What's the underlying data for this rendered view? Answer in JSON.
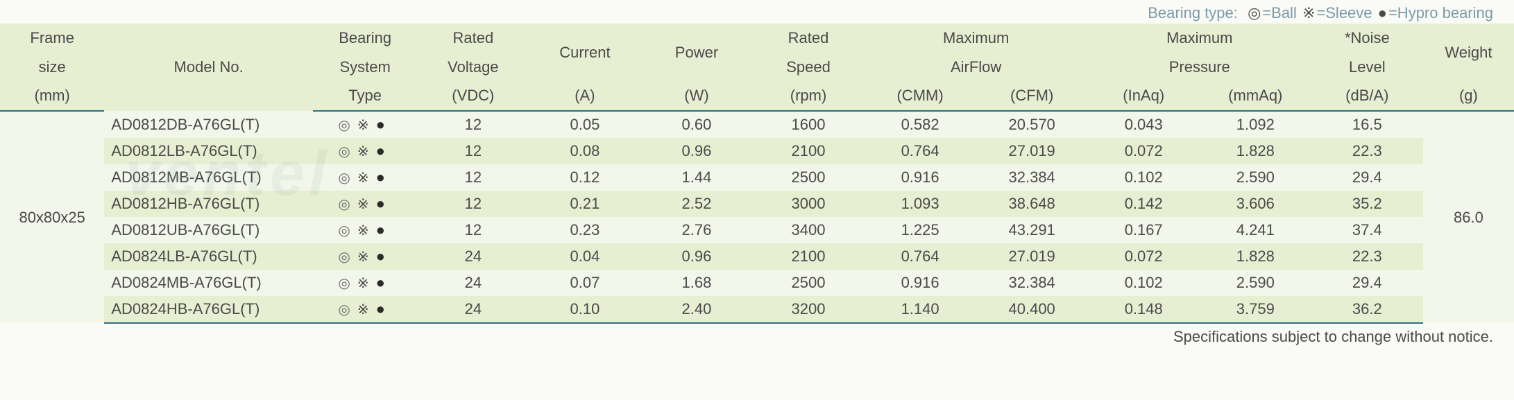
{
  "legend": {
    "label": "Bearing type:",
    "ball_sym": "◎",
    "ball_txt": "=Ball",
    "sleeve_sym": "※",
    "sleeve_txt": "=Sleeve",
    "hypro_sym": "●",
    "hypro_txt": "=Hypro bearing"
  },
  "columns": {
    "frame_l1": "Frame",
    "frame_l2": "size",
    "frame_l3": "(mm)",
    "model": "Model No.",
    "bearing_l1": "Bearing",
    "bearing_l2": "System",
    "bearing_l3": "Type",
    "volt_l1": "Rated",
    "volt_l2": "Voltage",
    "volt_l3": "(VDC)",
    "curr_l1": "Current",
    "curr_l2": "(A)",
    "power_l1": "Power",
    "power_l2": "(W)",
    "speed_l1": "Rated",
    "speed_l2": "Speed",
    "speed_l3": "(rpm)",
    "airflow_l1": "Maximum",
    "airflow_l2": "AirFlow",
    "airflow_cmm": "(CMM)",
    "airflow_cfm": "(CFM)",
    "press_l1": "Maximum",
    "press_l2": "Pressure",
    "press_inaq": "(InAq)",
    "press_mmaq": "(mmAq)",
    "noise_l1": "*Noise",
    "noise_l2": "Level",
    "noise_l3": "(dB/A)",
    "weight_l1": "Weight",
    "weight_l2": "(g)"
  },
  "frame_size": "80x80x25",
  "weight": "86.0",
  "rows": [
    {
      "model": "AD0812DB-A76GL(T)",
      "volt": "12",
      "curr": "0.05",
      "power": "0.60",
      "speed": "1600",
      "cmm": "0.582",
      "cfm": "20.570",
      "inaq": "0.043",
      "mmaq": "1.092",
      "noise": "16.5"
    },
    {
      "model": "AD0812LB-A76GL(T)",
      "volt": "12",
      "curr": "0.08",
      "power": "0.96",
      "speed": "2100",
      "cmm": "0.764",
      "cfm": "27.019",
      "inaq": "0.072",
      "mmaq": "1.828",
      "noise": "22.3"
    },
    {
      "model": "AD0812MB-A76GL(T)",
      "volt": "12",
      "curr": "0.12",
      "power": "1.44",
      "speed": "2500",
      "cmm": "0.916",
      "cfm": "32.384",
      "inaq": "0.102",
      "mmaq": "2.590",
      "noise": "29.4"
    },
    {
      "model": "AD0812HB-A76GL(T)",
      "volt": "12",
      "curr": "0.21",
      "power": "2.52",
      "speed": "3000",
      "cmm": "1.093",
      "cfm": "38.648",
      "inaq": "0.142",
      "mmaq": "3.606",
      "noise": "35.2"
    },
    {
      "model": "AD0812UB-A76GL(T)",
      "volt": "12",
      "curr": "0.23",
      "power": "2.76",
      "speed": "3400",
      "cmm": "1.225",
      "cfm": "43.291",
      "inaq": "0.167",
      "mmaq": "4.241",
      "noise": "37.4"
    },
    {
      "model": "AD0824LB-A76GL(T)",
      "volt": "24",
      "curr": "0.04",
      "power": "0.96",
      "speed": "2100",
      "cmm": "0.764",
      "cfm": "27.019",
      "inaq": "0.072",
      "mmaq": "1.828",
      "noise": "22.3"
    },
    {
      "model": "AD0824MB-A76GL(T)",
      "volt": "24",
      "curr": "0.07",
      "power": "1.68",
      "speed": "2500",
      "cmm": "0.916",
      "cfm": "32.384",
      "inaq": "0.102",
      "mmaq": "2.590",
      "noise": "29.4"
    },
    {
      "model": "AD0824HB-A76GL(T)",
      "volt": "24",
      "curr": "0.10",
      "power": "2.40",
      "speed": "3200",
      "cmm": "1.140",
      "cfm": "40.400",
      "inaq": "0.148",
      "mmaq": "3.759",
      "noise": "36.2"
    }
  ],
  "footnote": "Specifications subject to change without notice.",
  "watermark": "ventel",
  "bearing_icons": {
    "ball": "◎",
    "sleeve": "※",
    "hypro": "●"
  }
}
